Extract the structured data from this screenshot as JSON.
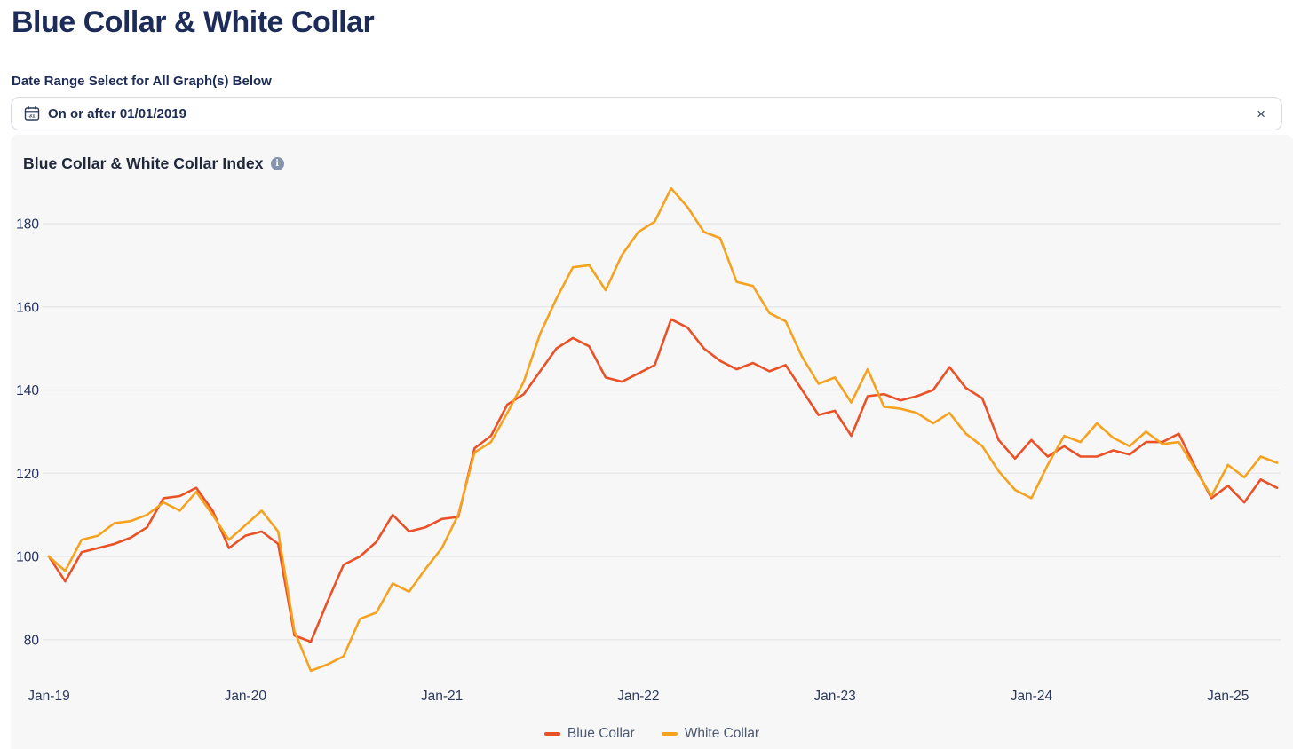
{
  "page": {
    "title": "Blue Collar & White Collar"
  },
  "date_filter": {
    "label": "Date Range Select for All Graph(s) Below",
    "value": "On or after 01/01/2019",
    "clear_glyph": "×",
    "calendar_icon": "calendar-icon"
  },
  "chart_card": {
    "title": "Blue Collar & White Collar Index",
    "info_glyph": "i"
  },
  "chart_data": {
    "type": "line",
    "title": "Blue Collar & White Collar Index",
    "xlabel": "",
    "ylabel": "",
    "grid": "horizontal",
    "legend_position": "bottom",
    "y_ticks": [
      80,
      100,
      120,
      140,
      160,
      180
    ],
    "ylim": [
      68,
      196
    ],
    "x_tick_labels": [
      "Jan-19",
      "Jan-20",
      "Jan-21",
      "Jan-22",
      "Jan-23",
      "Jan-24",
      "Jan-25"
    ],
    "months": [
      "Jan-19",
      "Feb-19",
      "Mar-19",
      "Apr-19",
      "May-19",
      "Jun-19",
      "Jul-19",
      "Aug-19",
      "Sep-19",
      "Oct-19",
      "Nov-19",
      "Dec-19",
      "Jan-20",
      "Feb-20",
      "Mar-20",
      "Apr-20",
      "May-20",
      "Jun-20",
      "Jul-20",
      "Aug-20",
      "Sep-20",
      "Oct-20",
      "Nov-20",
      "Dec-20",
      "Jan-21",
      "Feb-21",
      "Mar-21",
      "Apr-21",
      "May-21",
      "Jun-21",
      "Jul-21",
      "Aug-21",
      "Sep-21",
      "Oct-21",
      "Nov-21",
      "Dec-21",
      "Jan-22",
      "Feb-22",
      "Mar-22",
      "Apr-22",
      "May-22",
      "Jun-22",
      "Jul-22",
      "Aug-22",
      "Sep-22",
      "Oct-22",
      "Nov-22",
      "Dec-22",
      "Jan-23",
      "Feb-23",
      "Mar-23",
      "Apr-23",
      "May-23",
      "Jun-23",
      "Jul-23",
      "Aug-23",
      "Sep-23",
      "Oct-23",
      "Nov-23",
      "Dec-23",
      "Jan-24",
      "Feb-24",
      "Mar-24",
      "Apr-24",
      "May-24",
      "Jun-24",
      "Jul-24",
      "Aug-24",
      "Sep-24",
      "Oct-24",
      "Nov-24",
      "Dec-24",
      "Jan-25",
      "Feb-25",
      "Mar-25",
      "Apr-25"
    ],
    "series": [
      {
        "name": "Blue Collar",
        "color": "#ea5127",
        "values": [
          100,
          94,
          101,
          102,
          103,
          104.5,
          107,
          114,
          114.5,
          116.5,
          111,
          102,
          105,
          106,
          103,
          81,
          79.5,
          89,
          98,
          100,
          103.5,
          110,
          106,
          107,
          109,
          109.5,
          126,
          129,
          136.5,
          139,
          144.5,
          150,
          152.5,
          150.5,
          143,
          142,
          144,
          146,
          157,
          155,
          150,
          147,
          145,
          146.5,
          144.5,
          146,
          140,
          134,
          135,
          129,
          138.5,
          139,
          137.5,
          138.5,
          140,
          145.5,
          140.5,
          138,
          128,
          123.5,
          128,
          124,
          126.5,
          124,
          124,
          125.5,
          124.5,
          127.5,
          127.5,
          129.5,
          121.5,
          114,
          117,
          113,
          118.5,
          116.5
        ]
      },
      {
        "name": "White Collar",
        "color": "#f6a21f",
        "values": [
          100,
          96.5,
          104,
          105,
          108,
          108.5,
          110,
          113,
          111,
          115.5,
          110,
          104,
          107.5,
          111,
          106,
          82,
          72.5,
          74,
          76,
          85,
          86.5,
          93.5,
          91.5,
          97,
          102,
          110,
          125,
          127.5,
          134.5,
          142,
          153.5,
          162,
          169.5,
          170,
          164,
          172.5,
          178,
          180.5,
          188.5,
          184,
          178,
          176.5,
          166,
          165,
          158.5,
          156.5,
          148,
          141.5,
          143,
          137,
          145,
          136,
          135.5,
          134.5,
          132,
          134.5,
          129.5,
          126.5,
          120.5,
          116,
          114,
          122,
          129,
          127.5,
          132,
          128.5,
          126.5,
          130,
          127,
          127.5,
          121,
          114.5,
          122,
          119,
          124,
          122.5
        ]
      }
    ]
  }
}
